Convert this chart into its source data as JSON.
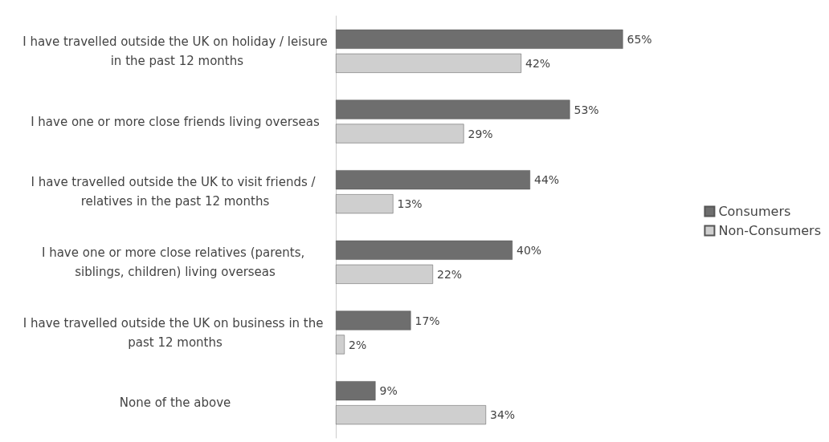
{
  "chart_data": {
    "type": "bar",
    "orientation": "horizontal",
    "legend": "right",
    "grid": false,
    "categories": [
      "I have travelled outside the UK on holiday / leisure in the past 12 months",
      "I have one or more close friends living overseas",
      "I have travelled outside the UK to visit friends / relatives in the past 12 months",
      "I have one or more close relatives (parents, siblings, children) living overseas",
      "I have travelled outside the UK on business in the past 12 months",
      "None of the above"
    ],
    "series": [
      {
        "name": "Consumers",
        "color": "#6e6e6e",
        "values": [
          65,
          53,
          44,
          40,
          17,
          9
        ],
        "value_labels": [
          "65%",
          "53%",
          "44%",
          "40%",
          "17%",
          "9%"
        ]
      },
      {
        "name": "Non-Consumers",
        "color": "#cfcfcf",
        "values": [
          42,
          29,
          13,
          22,
          2,
          34
        ],
        "value_labels": [
          "42%",
          "29%",
          "13%",
          "22%",
          "2%",
          "34%"
        ]
      }
    ]
  }
}
